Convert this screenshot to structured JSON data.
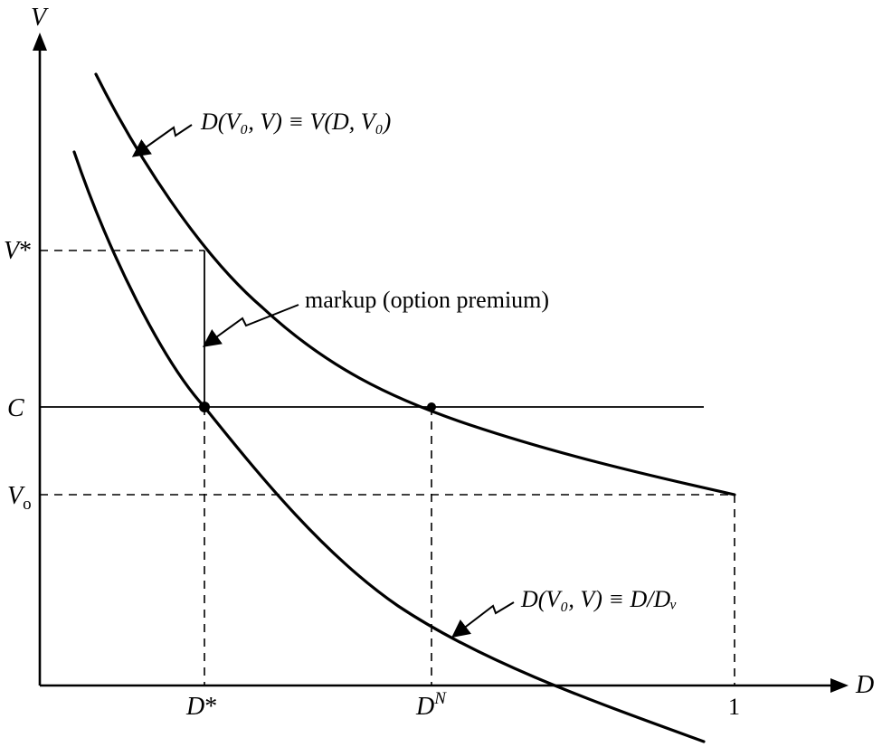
{
  "axes": {
    "y_label": "V",
    "x_label": "D"
  },
  "y_ticks": {
    "v_star": {
      "main": "V",
      "suffix": "*"
    },
    "c": "C",
    "v0": {
      "main": "V",
      "sub": "o"
    }
  },
  "x_ticks": {
    "d_star": {
      "main": "D",
      "suffix": "*"
    },
    "d_n": {
      "main": "D",
      "sup": "N"
    },
    "one": "1"
  },
  "annotations": {
    "upper_curve": "D(V₀, V) ≡ V(D, V₀)",
    "lower_curve": "D(V₀, V) ≡ D/Dᵥ",
    "markup": "markup (option premium)"
  },
  "colors": {
    "ink": "#000000",
    "background": "#ffffff"
  }
}
